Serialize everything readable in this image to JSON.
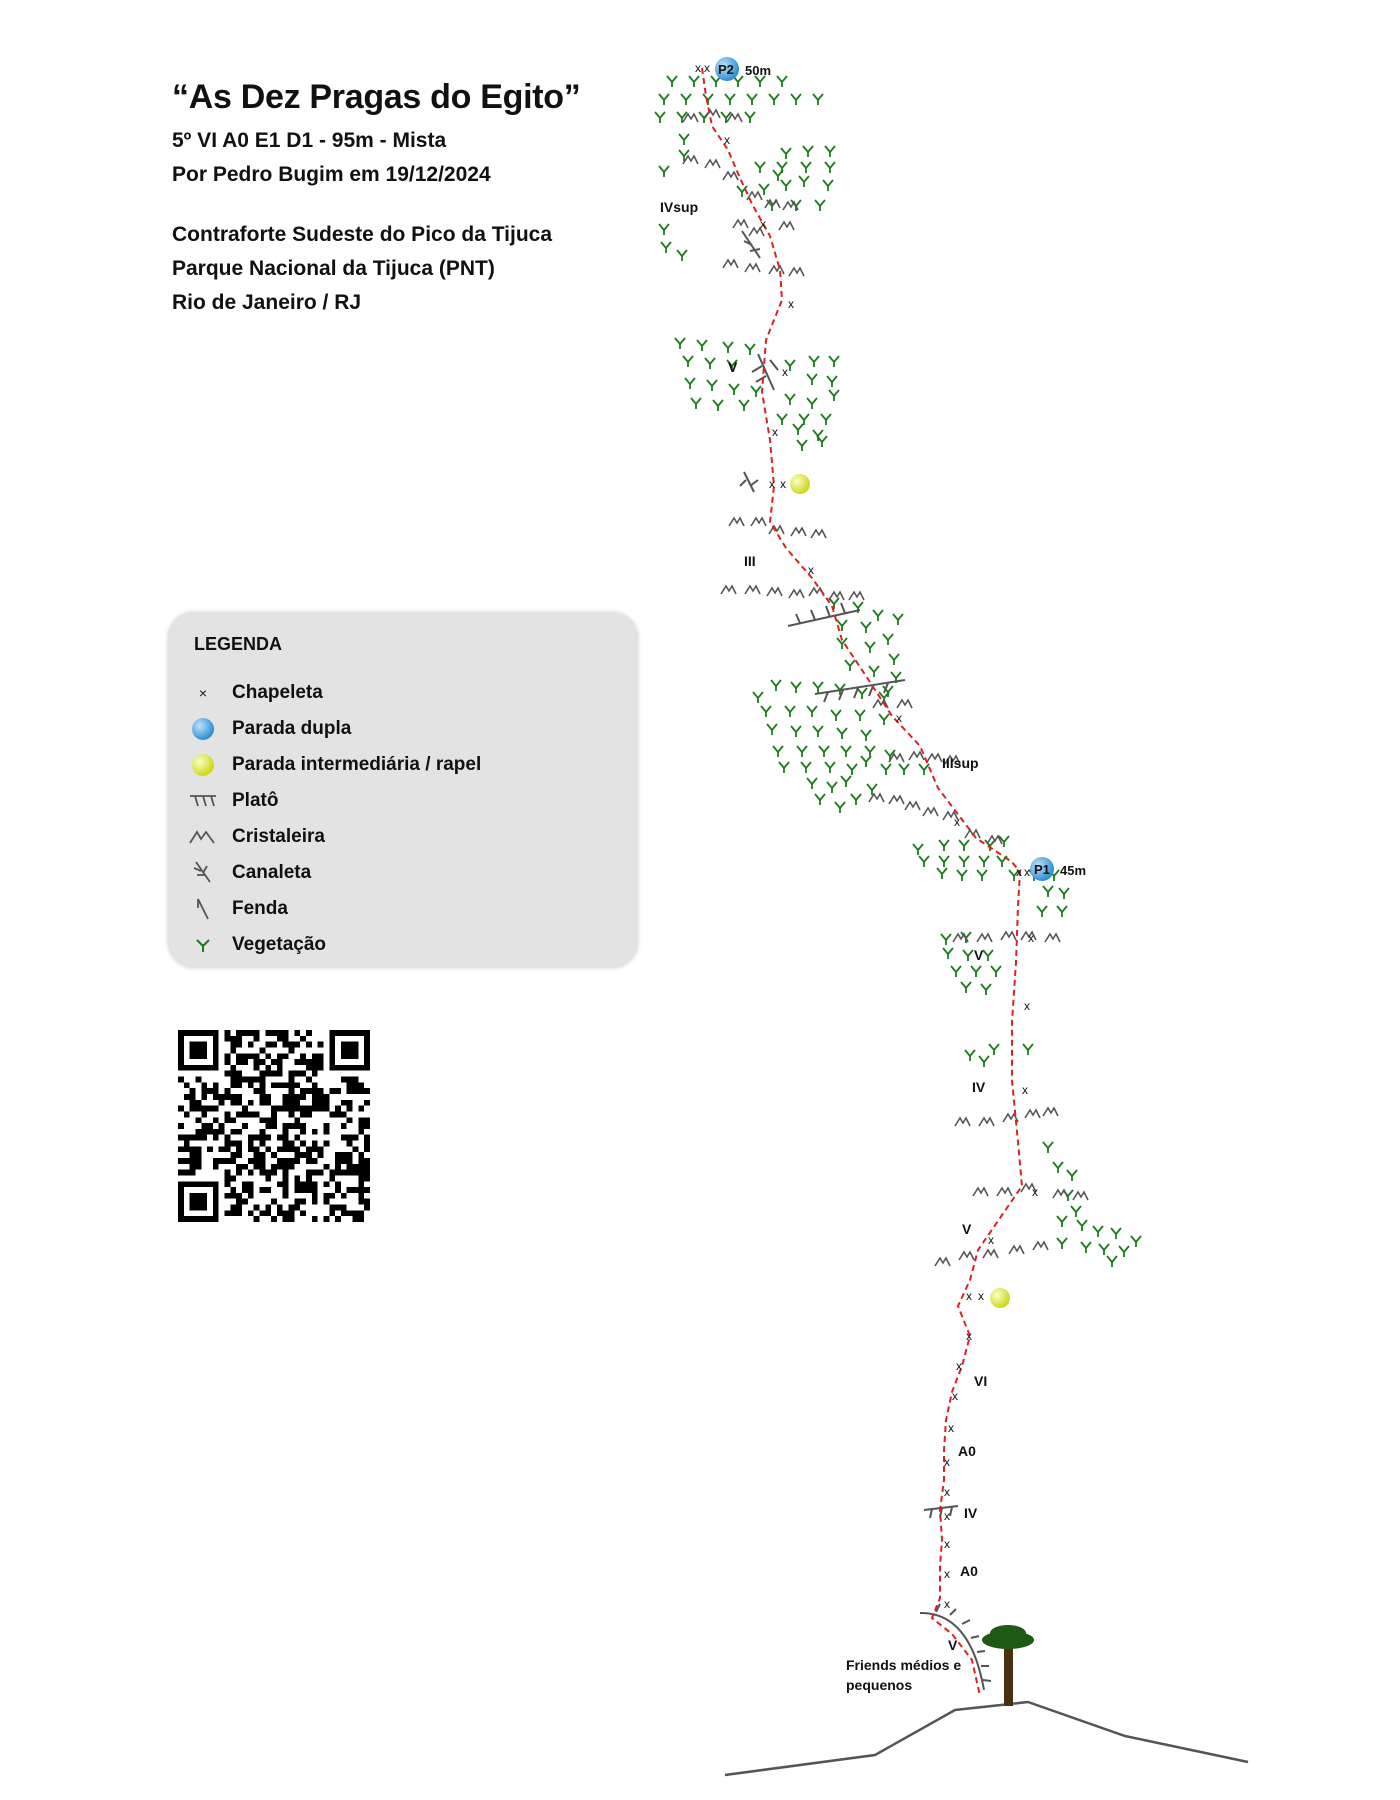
{
  "header": {
    "title": "“As Dez Pragas do Egito”",
    "grade": "5º VI A0 E1 D1 - 95m - Mista",
    "author": "Por Pedro Bugim em 19/12/2024",
    "location_1": "Contraforte Sudeste do Pico da Tijuca",
    "location_2": "Parque Nacional da Tijuca (PNT)",
    "location_3": "Rio de Janeiro / RJ"
  },
  "legend": {
    "title": "LEGENDA",
    "items": [
      {
        "symbol": "x-icon",
        "label": "Chapeleta"
      },
      {
        "symbol": "blue-dot-icon",
        "label": "Parada dupla"
      },
      {
        "symbol": "yellow-dot-icon",
        "label": "Parada intermediária / rapel"
      },
      {
        "symbol": "plato-icon",
        "label": "Platô"
      },
      {
        "symbol": "cristaleira-icon",
        "label": "Cristaleira"
      },
      {
        "symbol": "canaleta-icon",
        "label": "Canaleta"
      },
      {
        "symbol": "fenda-icon",
        "label": "Fenda"
      },
      {
        "symbol": "vegetation-icon",
        "label": "Vegetação"
      }
    ]
  },
  "route": {
    "stations": [
      {
        "name": "P1",
        "length": "45m"
      },
      {
        "name": "P2",
        "length": "50m"
      }
    ],
    "grades": [
      "IVsup",
      "V",
      "III",
      "IIIsup",
      "V",
      "IV",
      "V",
      "VI",
      "A0",
      "IV",
      "A0",
      "V"
    ],
    "gear_note_1": "Friends médios e",
    "gear_note_2": "pequenos",
    "bolt_mark": "x"
  },
  "colors": {
    "route": "#e02020",
    "double_station": "#4aa3df",
    "intermediate_station": "#e8f23a",
    "vegetation": "#1d7a1d",
    "rock_feature": "#555555",
    "legend_bg": "#e3e3e3",
    "tree_trunk": "#4a3010",
    "tree_canopy": "#1f5a14"
  }
}
